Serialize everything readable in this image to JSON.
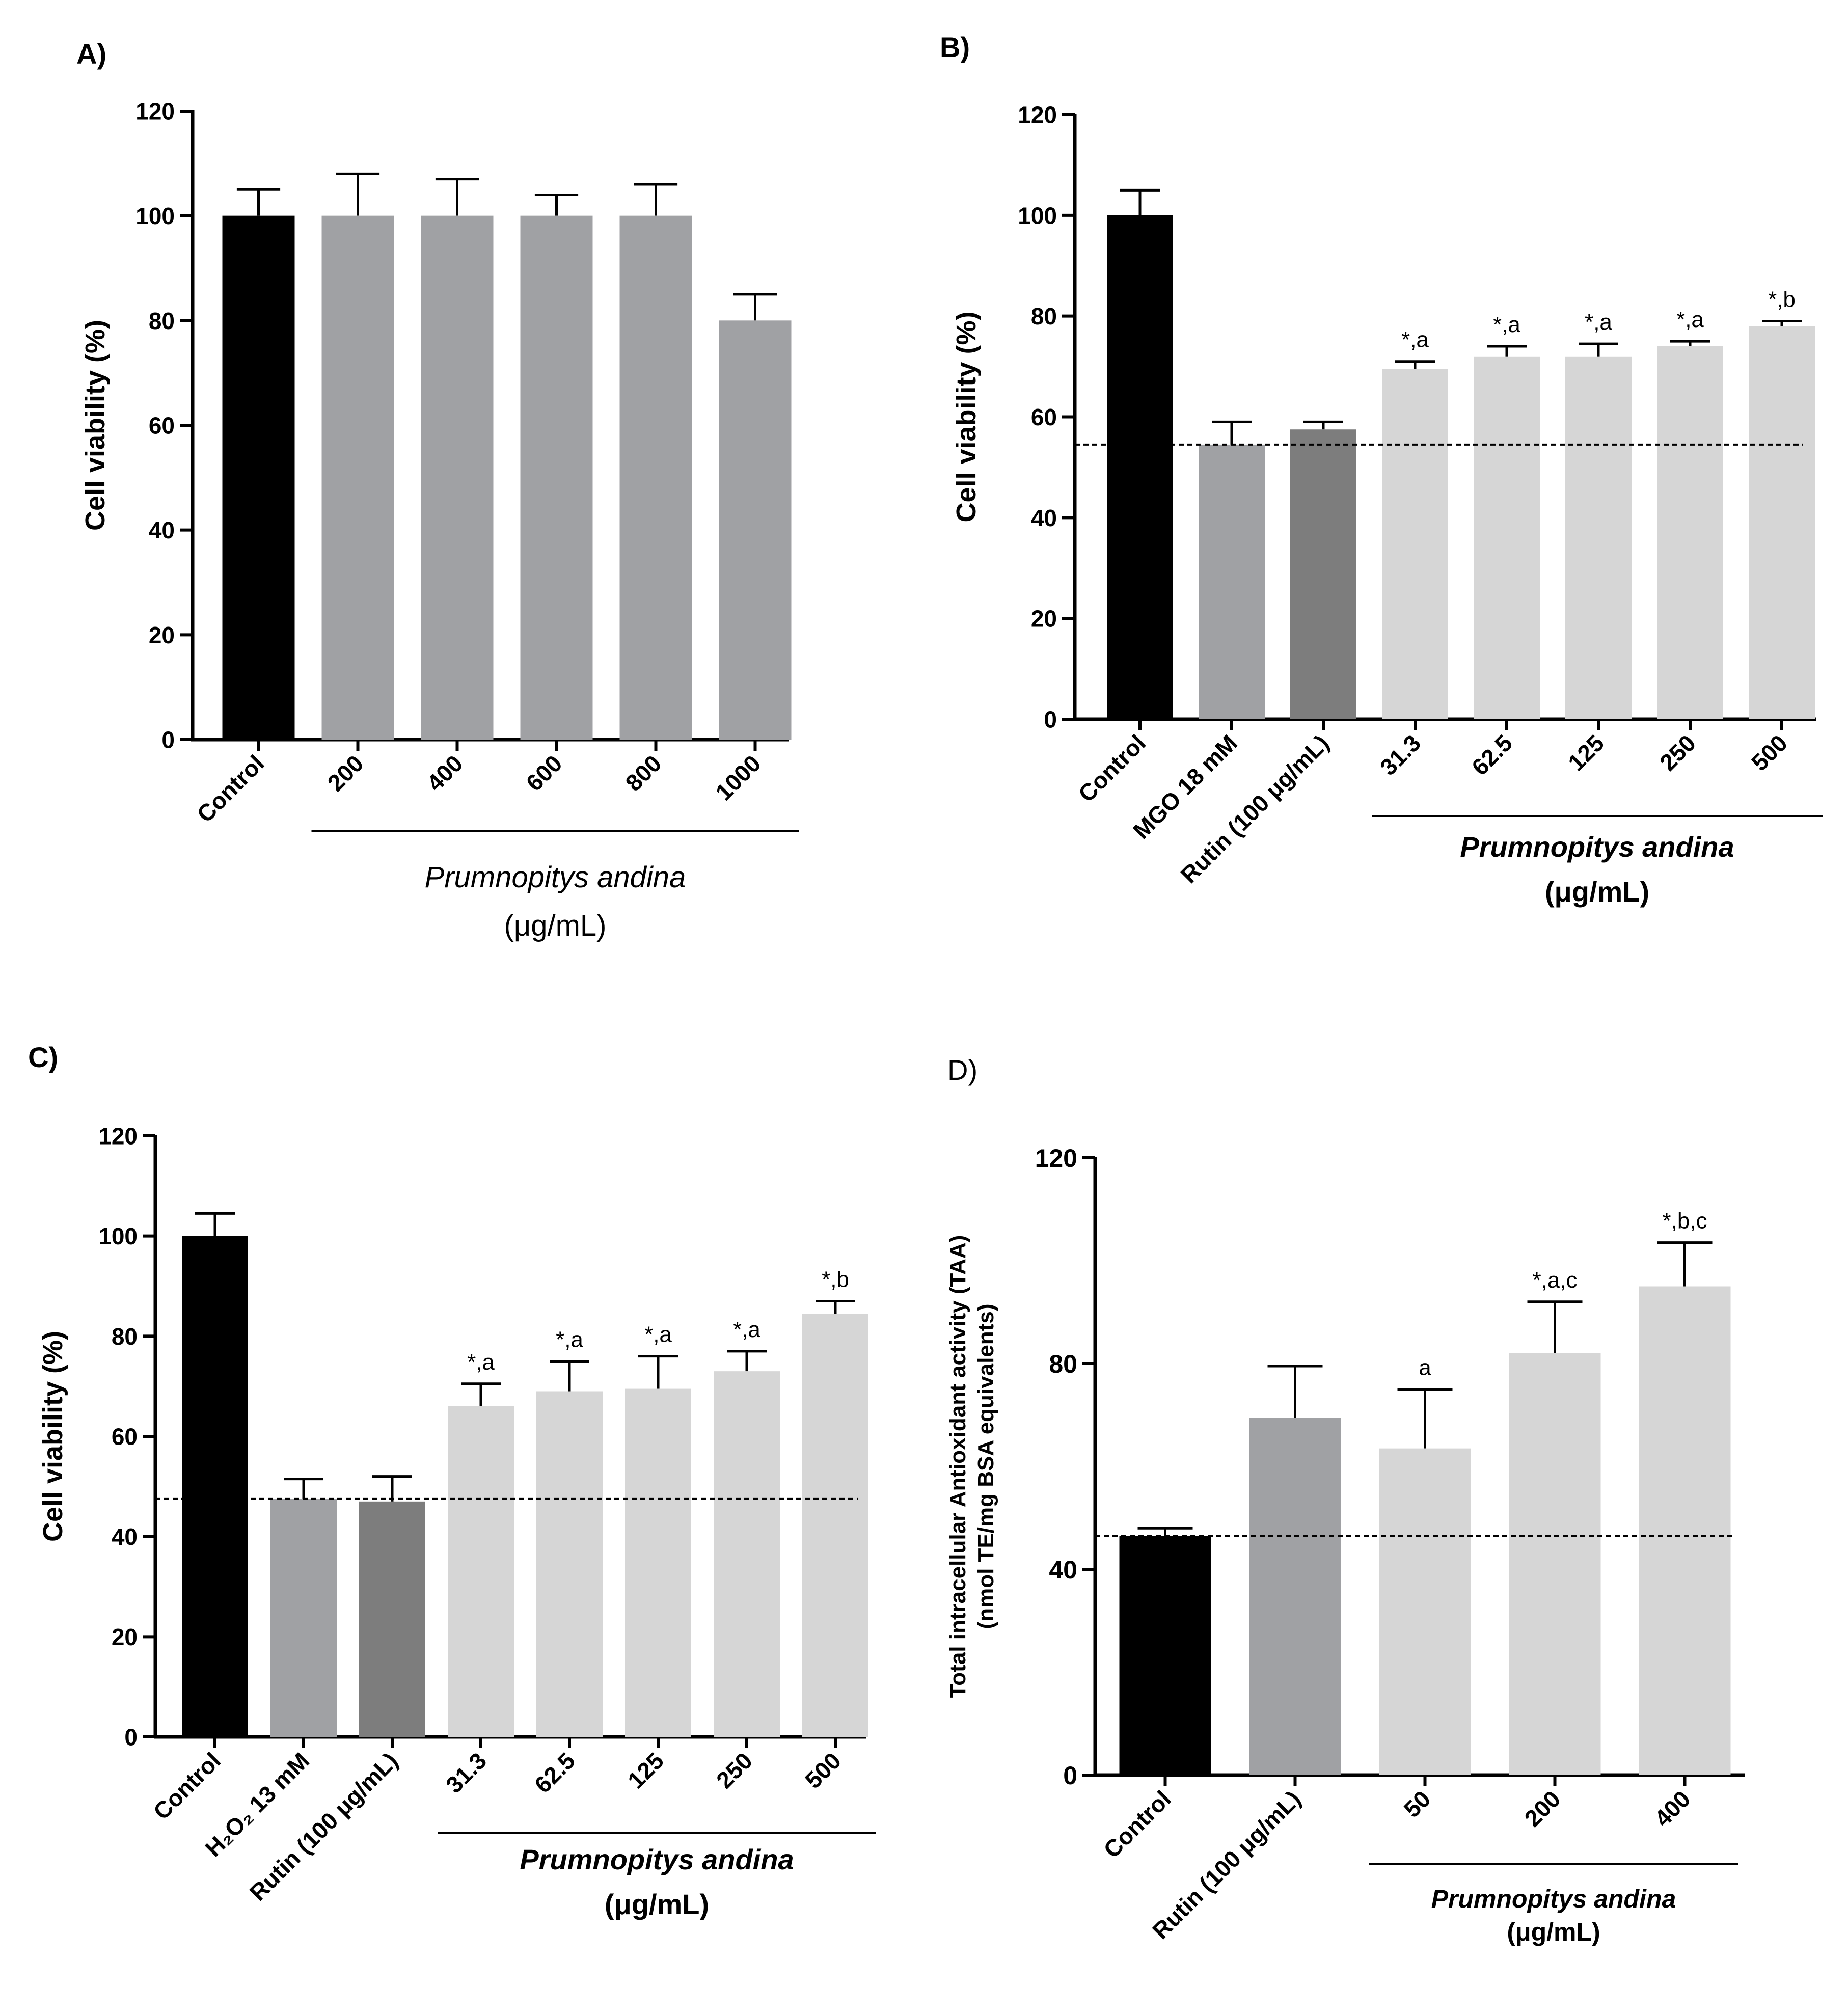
{
  "colors": {
    "control": "#000000",
    "gray": "#a0a1a4",
    "dark_gray": "#7d7d7d",
    "light_gray": "#d6d6d6",
    "axis": "#000000",
    "dashed": "#000000"
  },
  "chart_data": [
    {
      "id": "A",
      "panel_label": "A)",
      "type": "bar",
      "ylabel": "Cell viability  (%)",
      "ylim": [
        0,
        120
      ],
      "yticks": [
        "0",
        "20",
        "40",
        "60",
        "80",
        "100",
        "120"
      ],
      "categories": [
        "Control",
        "200",
        "400",
        "600",
        "800",
        "1000"
      ],
      "values": [
        100,
        100,
        100,
        100,
        100,
        80
      ],
      "errors": [
        5,
        8,
        7,
        4,
        6,
        5
      ],
      "bar_colors": [
        "control",
        "gray",
        "gray",
        "gray",
        "gray",
        "gray"
      ],
      "annotations": [
        "",
        "",
        "",
        "",
        "",
        ""
      ],
      "group_label": "Prumnopitys andina",
      "group_unit": "(μg/mL)",
      "group_range": [
        1,
        5
      ],
      "reference_line": null
    },
    {
      "id": "B",
      "panel_label": "B)",
      "type": "bar",
      "ylabel": "Cell viability  (%)",
      "ylim": [
        0,
        120
      ],
      "yticks": [
        "0",
        "20",
        "40",
        "60",
        "80",
        "100",
        "120"
      ],
      "categories": [
        "Control",
        "MGO 18 mM",
        "Rutin (100 μg/mL)",
        "31.3",
        "62.5",
        "125",
        "250",
        "500"
      ],
      "values": [
        100,
        54.5,
        57.5,
        69.5,
        72,
        72,
        74,
        78
      ],
      "errors": [
        5,
        4.5,
        1.5,
        1.5,
        2,
        2.5,
        1,
        1
      ],
      "bar_colors": [
        "control",
        "gray",
        "dark_gray",
        "light_gray",
        "light_gray",
        "light_gray",
        "light_gray",
        "light_gray"
      ],
      "annotations": [
        "",
        "",
        "",
        "*,a",
        "*,a",
        "*,a",
        "*,a",
        "*,b"
      ],
      "group_label": "Prumnopitys andina",
      "group_unit": "(μg/mL)",
      "group_range": [
        3,
        7
      ],
      "reference_line": 54.5
    },
    {
      "id": "C",
      "panel_label": "C)",
      "type": "bar",
      "ylabel": "Cell viability  (%)",
      "ylim": [
        0,
        120
      ],
      "yticks": [
        "0",
        "20",
        "40",
        "60",
        "80",
        "100",
        "120"
      ],
      "categories": [
        "Control",
        "H₂O₂ 13 mM",
        "Rutin (100 μg/mL)",
        "31.3",
        "62.5",
        "125",
        "250",
        "500"
      ],
      "values": [
        100,
        47.5,
        47,
        66,
        69,
        69.5,
        73,
        84.5
      ],
      "errors": [
        4.5,
        4,
        5,
        4.5,
        6,
        6.5,
        4,
        2.5
      ],
      "bar_colors": [
        "control",
        "gray",
        "dark_gray",
        "light_gray",
        "light_gray",
        "light_gray",
        "light_gray",
        "light_gray"
      ],
      "annotations": [
        "",
        "",
        "",
        "*,a",
        "*,a",
        "*,a",
        "*,a",
        "*,b"
      ],
      "group_label": "Prumnopitys andina",
      "group_unit": "(μg/mL)",
      "group_range": [
        3,
        7
      ],
      "reference_line": 47.5
    },
    {
      "id": "D",
      "panel_label": "D)",
      "type": "bar",
      "ylabel": "Total intracellular Antioxidant activity (TAA)",
      "ylabel2": "(nmol TE/mg BSA equivalents)",
      "ylim": [
        0,
        120
      ],
      "yticks": [
        "0",
        "40",
        "80",
        "120"
      ],
      "categories": [
        "Control",
        "Rutin (100 μg/mL)",
        "50",
        "200",
        "400"
      ],
      "values": [
        46.5,
        69.5,
        63.5,
        82,
        95
      ],
      "errors": [
        1.5,
        10,
        11.5,
        10,
        8.5
      ],
      "bar_colors": [
        "control",
        "gray",
        "light_gray",
        "light_gray",
        "light_gray"
      ],
      "annotations": [
        "",
        "",
        "a",
        "*,a,c",
        "*,b,c"
      ],
      "group_label": "Prumnopitys andina",
      "group_unit": "(μg/mL)",
      "group_range": [
        2,
        4
      ],
      "reference_line": 46.5
    }
  ]
}
